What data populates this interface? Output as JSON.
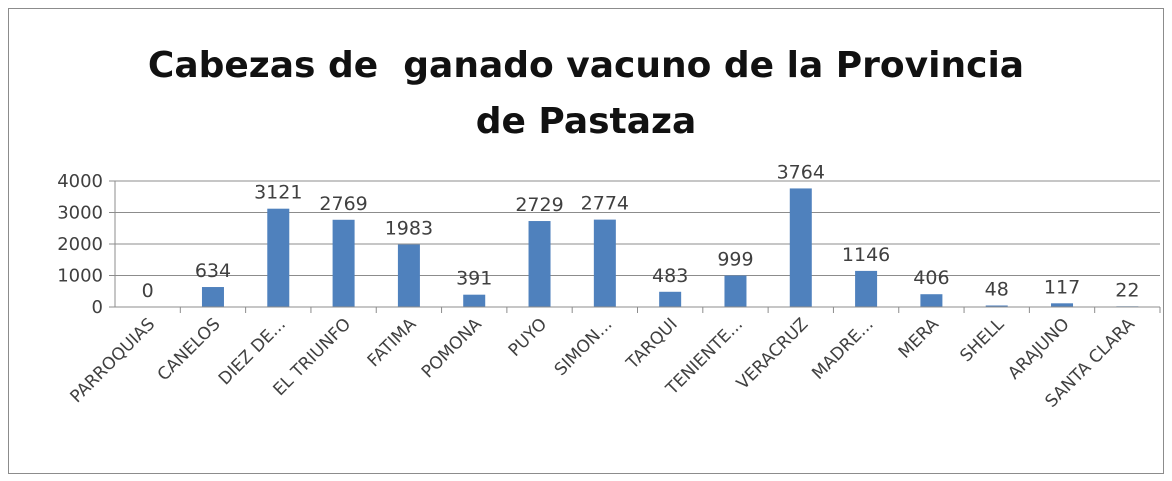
{
  "chart_data": {
    "type": "bar",
    "title": "Cabezas de  ganado vacuno de la Provincia de Pastaza",
    "categories": [
      "PARROQUIAS",
      "CANELOS",
      "DIEZ DE...",
      "EL TRIUNFO",
      "FATIMA",
      "POMONA",
      "PUYO",
      "SIMON...",
      "TARQUI",
      "TENIENTE...",
      "VERACRUZ",
      "MADRE...",
      "MERA",
      "SHELL",
      "ARAJUNO",
      "SANTA CLARA"
    ],
    "values": [
      0,
      634,
      3121,
      2769,
      1983,
      391,
      2729,
      2774,
      483,
      999,
      3764,
      1146,
      406,
      48,
      117,
      22
    ],
    "color": "#4f81bd",
    "ylim": [
      0,
      4000
    ],
    "yticks": [
      0,
      1000,
      2000,
      3000,
      4000
    ],
    "grid": true
  }
}
